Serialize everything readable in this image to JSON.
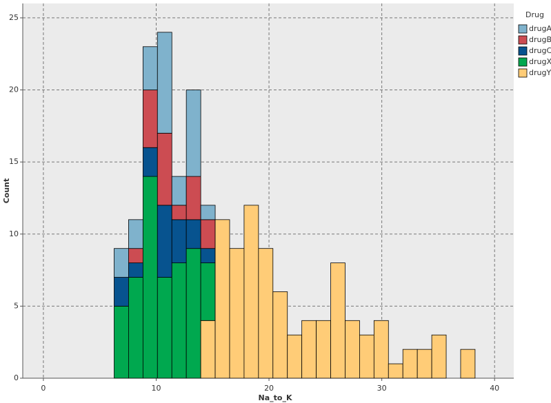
{
  "chart_data": {
    "type": "histogram",
    "stacked": true,
    "x_label": "Na_to_K",
    "y_label": "Count",
    "legend_title": "Drug",
    "legend_position": "right",
    "bins": [
      6.27,
      7.55,
      8.83,
      10.11,
      11.39,
      12.67,
      13.95,
      15.23,
      16.51,
      17.79,
      19.07,
      20.35,
      21.63,
      22.91,
      24.19,
      25.47,
      26.75,
      28.03,
      29.31,
      30.59,
      31.87,
      33.15,
      34.43,
      35.71,
      36.99,
      38.27
    ],
    "series": [
      {
        "name": "drugA",
        "color": "#7fb2cc",
        "values": [
          2,
          2,
          3,
          7,
          2,
          6,
          1,
          0,
          0,
          0,
          0,
          0,
          0,
          0,
          0,
          0,
          0,
          0,
          0,
          0,
          0,
          0,
          0,
          0,
          0
        ]
      },
      {
        "name": "drugB",
        "color": "#cc4c52",
        "values": [
          0,
          1,
          4,
          5,
          1,
          3,
          2,
          0,
          0,
          0,
          0,
          0,
          0,
          0,
          0,
          0,
          0,
          0,
          0,
          0,
          0,
          0,
          0,
          0,
          0
        ]
      },
      {
        "name": "drugC",
        "color": "#07538f",
        "values": [
          2,
          1,
          2,
          5,
          3,
          2,
          1,
          0,
          0,
          0,
          0,
          0,
          0,
          0,
          0,
          0,
          0,
          0,
          0,
          0,
          0,
          0,
          0,
          0,
          0
        ]
      },
      {
        "name": "drugX",
        "color": "#00a84f",
        "values": [
          5,
          7,
          14,
          7,
          8,
          9,
          4,
          0,
          0,
          0,
          0,
          0,
          0,
          0,
          0,
          0,
          0,
          0,
          0,
          0,
          0,
          0,
          0,
          0,
          0
        ]
      },
      {
        "name": "drugY",
        "color": "#ffcc77",
        "values": [
          0,
          0,
          0,
          0,
          0,
          0,
          4,
          11,
          9,
          12,
          9,
          6,
          3,
          4,
          4,
          8,
          4,
          3,
          4,
          1,
          2,
          2,
          3,
          0,
          2
        ]
      }
    ],
    "xlim": [
      -1.83,
      41.7
    ],
    "xticks": [
      0,
      10,
      20,
      30,
      40
    ],
    "ylim": [
      0,
      26
    ],
    "yticks": [
      0,
      5,
      10,
      15,
      20,
      25
    ],
    "grid": true
  }
}
